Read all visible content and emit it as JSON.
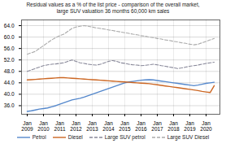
{
  "chart_data": {
    "type": "line",
    "title": "Residual values as a % of the list price - comparison of the overall market,\nlarge SUV valuation 36 months 60,000 km sales",
    "categories": [
      "Jan\n2009",
      null,
      null,
      null,
      "Jan\n2010",
      null,
      null,
      null,
      "Jan\n2011",
      null,
      null,
      null,
      "Jan\n2012",
      null,
      null,
      null,
      "Jan\n2013",
      null,
      null,
      null,
      "Jan\n2014",
      null,
      null,
      null,
      "Jan\n2015",
      null,
      null,
      null,
      "Jan\n2016",
      null,
      null,
      null,
      "Jan\n2017",
      null,
      null,
      null,
      "Jan\n2018",
      null,
      null,
      null,
      "Jan\n2019",
      null,
      null,
      null,
      "Jan\n2020",
      null,
      null
    ],
    "series": [
      {
        "name": "Petrol",
        "color": "#5588cc",
        "line_style": "solid",
        "values": [
          34.0,
          34.2,
          34.5,
          34.8,
          35.0,
          35.2,
          35.6,
          36.0,
          36.5,
          37.0,
          37.5,
          38.0,
          38.3,
          38.6,
          39.0,
          39.5,
          40.0,
          40.5,
          41.0,
          41.5,
          42.0,
          42.5,
          43.0,
          43.5,
          44.0,
          44.3,
          44.5,
          44.7,
          44.9,
          45.0,
          45.1,
          45.0,
          44.8,
          44.6,
          44.4,
          44.2,
          44.0,
          43.8,
          43.6,
          43.4,
          43.2,
          43.0,
          43.2,
          43.5,
          43.8,
          44.0,
          44.2
        ]
      },
      {
        "name": "Diesel",
        "color": "#cc6622",
        "line_style": "solid",
        "values": [
          45.0,
          45.1,
          45.2,
          45.3,
          45.4,
          45.5,
          45.6,
          45.7,
          45.8,
          45.8,
          45.7,
          45.6,
          45.5,
          45.4,
          45.3,
          45.2,
          45.1,
          45.0,
          44.9,
          44.8,
          44.7,
          44.6,
          44.5,
          44.4,
          44.3,
          44.2,
          44.1,
          44.0,
          43.9,
          43.8,
          43.7,
          43.5,
          43.3,
          43.1,
          42.9,
          42.7,
          42.5,
          42.3,
          42.1,
          41.9,
          41.7,
          41.5,
          41.3,
          41.0,
          40.8,
          40.6,
          43.0
        ]
      },
      {
        "name": "Large SUV petrol",
        "color": "#888899",
        "line_style": "dashed",
        "values": [
          48.0,
          48.5,
          49.0,
          49.5,
          50.0,
          50.3,
          50.5,
          50.6,
          50.8,
          51.0,
          51.5,
          52.0,
          51.5,
          51.0,
          50.8,
          50.5,
          50.3,
          50.2,
          50.5,
          51.0,
          51.5,
          51.8,
          51.5,
          51.0,
          50.8,
          50.5,
          50.3,
          50.2,
          50.0,
          50.1,
          50.3,
          50.5,
          50.3,
          50.0,
          49.8,
          49.5,
          49.3,
          49.0,
          49.2,
          49.5,
          49.8,
          50.0,
          50.2,
          50.5,
          50.8,
          51.0,
          51.2
        ]
      },
      {
        "name": "Large SUV Diesel",
        "color": "#aaaaaa",
        "line_style": "dashed",
        "values": [
          54.0,
          54.5,
          55.0,
          56.0,
          57.0,
          58.0,
          59.0,
          59.8,
          60.5,
          61.0,
          62.0,
          63.0,
          63.5,
          63.8,
          64.0,
          63.8,
          63.5,
          63.2,
          63.0,
          62.8,
          62.5,
          62.3,
          62.0,
          61.8,
          61.5,
          61.3,
          61.0,
          60.8,
          60.5,
          60.3,
          60.0,
          59.8,
          59.5,
          59.3,
          59.0,
          58.8,
          58.5,
          58.3,
          58.0,
          57.8,
          57.5,
          57.3,
          57.5,
          58.0,
          58.5,
          59.0,
          59.5
        ]
      }
    ],
    "ylim": [
      33,
      66
    ],
    "yticks": [
      {
        "value": 36,
        "label": "36.0"
      },
      {
        "value": 40,
        "label": "40.0"
      },
      {
        "value": 44,
        "label": "44.0"
      },
      {
        "value": 48,
        "label": "48.0"
      },
      {
        "value": 52,
        "label": "52.0"
      },
      {
        "value": 56,
        "label": "56.0"
      },
      {
        "value": 60,
        "label": "60.0"
      },
      {
        "value": 64,
        "label": "64.0"
      }
    ],
    "grid": true,
    "legend": "bottom"
  }
}
